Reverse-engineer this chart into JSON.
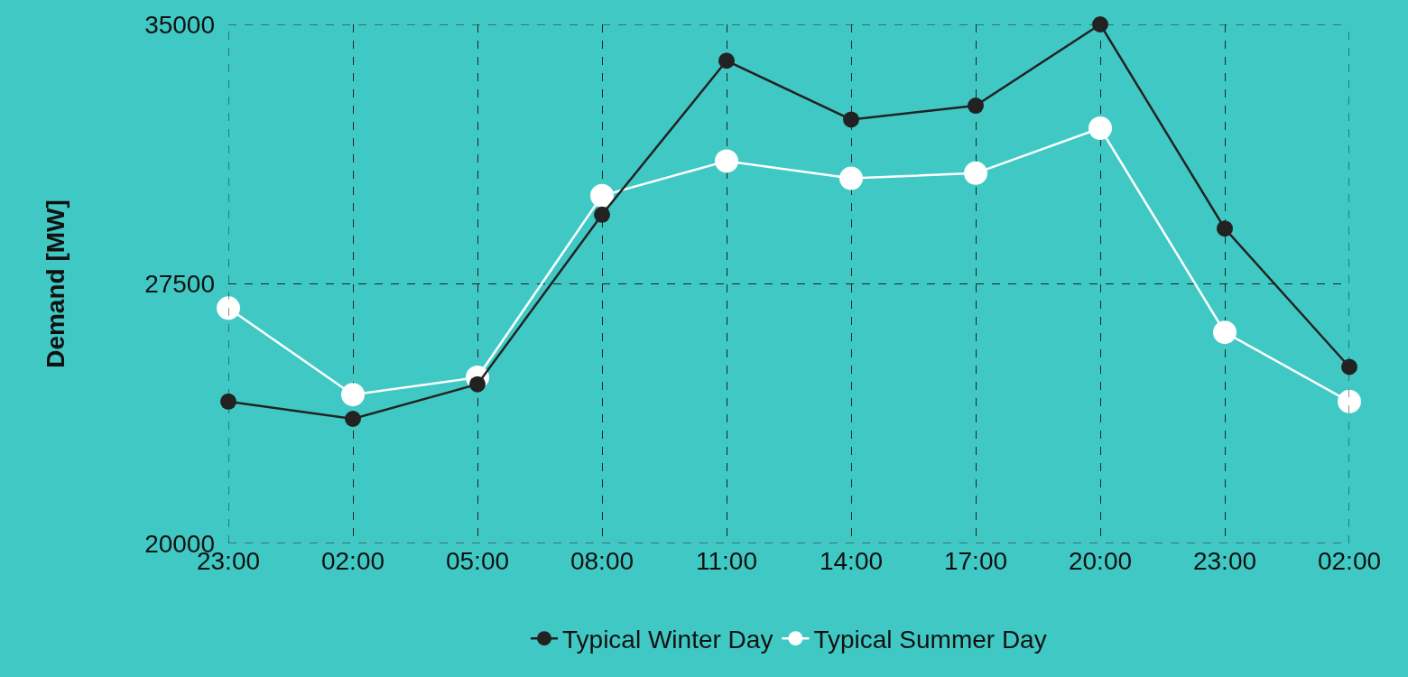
{
  "chart_data": {
    "type": "line",
    "ylabel": "Demand [MW]",
    "categories": [
      "23:00",
      "02:00",
      "05:00",
      "08:00",
      "11:00",
      "14:00",
      "17:00",
      "20:00",
      "23:00",
      "02:00"
    ],
    "series": [
      {
        "name": "Typical Winter Day",
        "color": "#222222",
        "values": [
          24100,
          23600,
          24600,
          29500,
          33950,
          32250,
          32650,
          35000,
          29100,
          25100
        ]
      },
      {
        "name": "Typical Summer Day",
        "color": "#ffffff",
        "values": [
          26800,
          24300,
          24800,
          30050,
          31050,
          30550,
          30700,
          32000,
          26100,
          24100
        ]
      }
    ],
    "ylim": [
      20000,
      35000
    ],
    "yticks": [
      20000,
      27500,
      35000
    ],
    "grid": true,
    "legend": "bottom",
    "marker": "circle",
    "line_style": "solid"
  }
}
